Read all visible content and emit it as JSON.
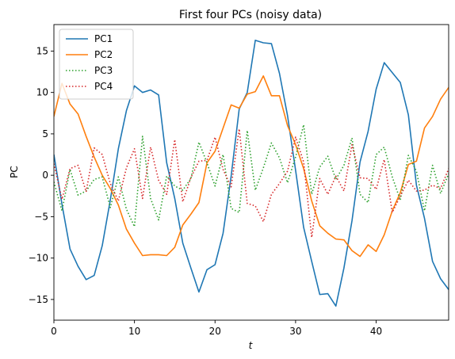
{
  "chart_data": {
    "type": "line",
    "title": "First four PCs (noisy data)",
    "xlabel": "t",
    "ylabel": "PC",
    "xlim": [
      0,
      49
    ],
    "ylim": [
      -17.5,
      18.2
    ],
    "xticks": [
      0,
      10,
      20,
      30,
      40
    ],
    "yticks": [
      -15,
      -10,
      -5,
      0,
      5,
      10,
      15
    ],
    "grid": false,
    "legend_position": "top-left",
    "x": [
      0,
      1,
      2,
      3,
      4,
      5,
      6,
      7,
      8,
      9,
      10,
      11,
      12,
      13,
      14,
      15,
      16,
      17,
      18,
      19,
      20,
      21,
      22,
      23,
      24,
      25,
      26,
      27,
      28,
      29,
      30,
      31,
      32,
      33,
      34,
      35,
      36,
      37,
      38,
      39,
      40,
      41,
      42,
      43,
      44,
      45,
      46,
      47,
      48,
      49
    ],
    "series": [
      {
        "name": "PC1",
        "color": "#1f77b4",
        "dash": "solid",
        "values": [
          2.5,
          -3.5,
          -8.9,
          -11.0,
          -12.6,
          -12.1,
          -8.5,
          -3.0,
          3.2,
          7.8,
          10.8,
          10.0,
          10.3,
          9.7,
          1.5,
          -2.8,
          -8.2,
          -11.2,
          -14.1,
          -11.4,
          -10.8,
          -7.0,
          -0.1,
          8.0,
          10.0,
          16.3,
          16.0,
          15.9,
          12.3,
          7.2,
          0.6,
          -6.3,
          -10.4,
          -14.4,
          -14.3,
          -15.8,
          -11.2,
          -5.5,
          1.6,
          5.3,
          10.4,
          13.6,
          12.4,
          11.2,
          7.3,
          -1.2,
          -5.2,
          -10.4,
          -12.5,
          -13.8
        ]
      },
      {
        "name": "PC2",
        "color": "#ff7f0e",
        "dash": "solid",
        "values": [
          7.1,
          11.1,
          8.6,
          7.4,
          4.7,
          2.2,
          0.0,
          -1.6,
          -3.6,
          -6.5,
          -8.2,
          -9.7,
          -9.6,
          -9.6,
          -9.7,
          -8.7,
          -6.0,
          -4.7,
          -3.3,
          1.5,
          2.9,
          5.7,
          8.5,
          8.1,
          9.8,
          10.1,
          12.0,
          9.6,
          9.6,
          6.0,
          3.7,
          0.8,
          -3.1,
          -6.1,
          -7.0,
          -7.7,
          -7.8,
          -9.1,
          -9.8,
          -8.4,
          -9.2,
          -7.2,
          -4.3,
          -2.1,
          1.3,
          1.7,
          5.7,
          7.1,
          9.2,
          10.6
        ]
      },
      {
        "name": "PC3",
        "color": "#2ca02c",
        "dash": "1.5,2.5",
        "values": [
          -0.8,
          -4.3,
          0.7,
          -2.4,
          -1.9,
          -0.5,
          -0.2,
          -3.9,
          -0.2,
          -4.1,
          -6.2,
          4.7,
          -2.8,
          -5.4,
          -0.1,
          -1.3,
          -1.8,
          -0.4,
          4.0,
          1.5,
          -1.3,
          2.5,
          -4.0,
          -4.5,
          5.4,
          -1.8,
          0.9,
          3.9,
          2.1,
          -0.9,
          2.2,
          6.1,
          -2.3,
          1.0,
          2.3,
          -0.5,
          1.2,
          4.5,
          -2.3,
          -3.3,
          2.5,
          3.4,
          -0.2,
          -3.0,
          2.4,
          0.5,
          -4.3,
          1.2,
          -2.2,
          0.2
        ]
      },
      {
        "name": "PC4",
        "color": "#d62728",
        "dash": "1.5,2.5",
        "values": [
          1.4,
          -2.9,
          0.8,
          1.2,
          -2.0,
          3.3,
          2.5,
          -1.0,
          -3.1,
          0.9,
          3.2,
          -2.8,
          3.4,
          -0.6,
          -2.3,
          4.3,
          -3.2,
          -0.3,
          1.7,
          1.8,
          4.6,
          0.7,
          -1.4,
          5.6,
          -3.4,
          -3.7,
          -5.6,
          -2.3,
          -1.0,
          0.5,
          4.6,
          1.6,
          -7.5,
          -0.4,
          -2.3,
          -0.1,
          -1.9,
          3.7,
          -0.3,
          -0.4,
          -1.7,
          1.9,
          -4.5,
          -2.5,
          -0.6,
          -1.9,
          -1.8,
          -1.2,
          -1.6,
          0.8
        ]
      }
    ]
  }
}
